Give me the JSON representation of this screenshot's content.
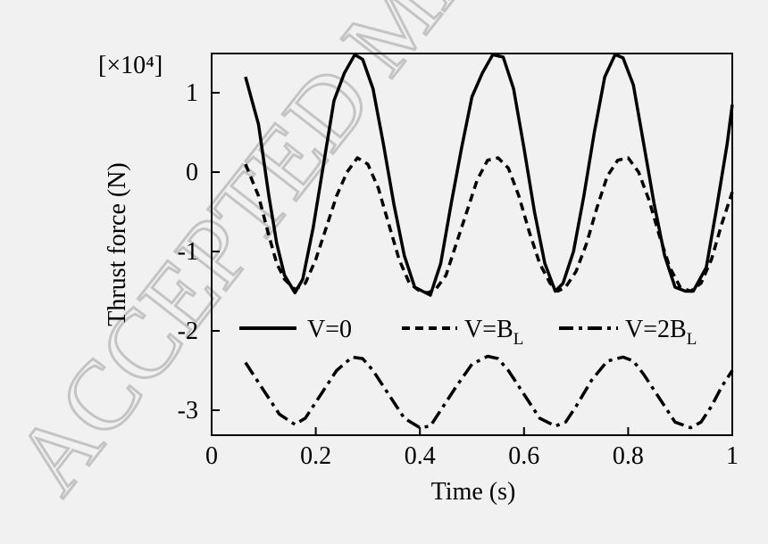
{
  "watermark": "ACCEPTED MANUSCRIPT",
  "chart_data": {
    "type": "line",
    "xlabel": "Time (s)",
    "ylabel": "Thrust force (N)",
    "yscale_label": "[×10⁴]",
    "xlim": [
      0,
      1
    ],
    "ylim": [
      -3.3,
      1.5
    ],
    "xticks": [
      0,
      0.2,
      0.4,
      0.6,
      0.8,
      1
    ],
    "xtick_labels": [
      "0",
      "0.2",
      "0.4",
      "0.6",
      "0.8",
      "1"
    ],
    "yticks": [
      1,
      0,
      -1,
      -2,
      -3
    ],
    "ytick_labels": [
      "1",
      "0",
      "-1",
      "-2",
      "-3"
    ],
    "legend_position": "middle",
    "grid": false,
    "series": [
      {
        "name": "V=0",
        "style": "solid",
        "x": [
          0.065,
          0.09,
          0.11,
          0.125,
          0.14,
          0.16,
          0.175,
          0.195,
          0.215,
          0.235,
          0.255,
          0.275,
          0.29,
          0.31,
          0.33,
          0.35,
          0.37,
          0.39,
          0.405,
          0.42,
          0.44,
          0.46,
          0.48,
          0.5,
          0.52,
          0.54,
          0.56,
          0.58,
          0.6,
          0.62,
          0.64,
          0.66,
          0.675,
          0.695,
          0.715,
          0.735,
          0.755,
          0.775,
          0.79,
          0.81,
          0.83,
          0.85,
          0.87,
          0.89,
          0.91,
          0.925,
          0.95,
          0.97,
          0.99,
          1.0
        ],
        "y": [
          1.2,
          0.6,
          -0.3,
          -0.9,
          -1.3,
          -1.52,
          -1.35,
          -0.7,
          0.1,
          0.9,
          1.25,
          1.48,
          1.42,
          1.05,
          0.35,
          -0.4,
          -1.05,
          -1.45,
          -1.5,
          -1.55,
          -1.15,
          -0.4,
          0.3,
          0.95,
          1.25,
          1.48,
          1.45,
          1.05,
          0.3,
          -0.5,
          -1.15,
          -1.5,
          -1.4,
          -1.0,
          -0.3,
          0.5,
          1.2,
          1.48,
          1.44,
          1.1,
          0.35,
          -0.4,
          -1.05,
          -1.45,
          -1.5,
          -1.5,
          -1.2,
          -0.45,
          0.35,
          0.85
        ]
      },
      {
        "name": "V=B",
        "name_subscript": "L",
        "style": "dashed",
        "x": [
          0.065,
          0.09,
          0.11,
          0.125,
          0.14,
          0.16,
          0.18,
          0.2,
          0.22,
          0.24,
          0.26,
          0.28,
          0.3,
          0.32,
          0.34,
          0.36,
          0.38,
          0.4,
          0.415,
          0.43,
          0.45,
          0.47,
          0.49,
          0.51,
          0.53,
          0.55,
          0.57,
          0.59,
          0.61,
          0.63,
          0.65,
          0.665,
          0.68,
          0.7,
          0.72,
          0.74,
          0.76,
          0.78,
          0.8,
          0.82,
          0.84,
          0.86,
          0.88,
          0.9,
          0.92,
          0.94,
          0.96,
          0.98,
          1.0
        ],
        "y": [
          0.1,
          -0.3,
          -0.8,
          -1.15,
          -1.35,
          -1.48,
          -1.4,
          -1.1,
          -0.7,
          -0.3,
          0.0,
          0.18,
          0.1,
          -0.2,
          -0.65,
          -1.1,
          -1.4,
          -1.5,
          -1.52,
          -1.48,
          -1.3,
          -0.9,
          -0.5,
          -0.1,
          0.15,
          0.18,
          0.05,
          -0.3,
          -0.75,
          -1.15,
          -1.4,
          -1.5,
          -1.45,
          -1.25,
          -0.9,
          -0.45,
          -0.05,
          0.15,
          0.18,
          0.0,
          -0.35,
          -0.8,
          -1.2,
          -1.45,
          -1.5,
          -1.4,
          -1.1,
          -0.65,
          -0.25
        ]
      },
      {
        "name": "V=2B",
        "name_subscript": "L",
        "style": "dashdot",
        "x": [
          0.065,
          0.1,
          0.13,
          0.16,
          0.18,
          0.21,
          0.24,
          0.27,
          0.29,
          0.31,
          0.34,
          0.37,
          0.4,
          0.42,
          0.44,
          0.47,
          0.5,
          0.53,
          0.55,
          0.57,
          0.6,
          0.63,
          0.66,
          0.68,
          0.7,
          0.73,
          0.76,
          0.79,
          0.81,
          0.83,
          0.86,
          0.89,
          0.92,
          0.94,
          0.96,
          0.98,
          1.0
        ],
        "y": [
          -2.4,
          -2.75,
          -3.05,
          -3.18,
          -3.1,
          -2.8,
          -2.5,
          -2.33,
          -2.35,
          -2.5,
          -2.8,
          -3.1,
          -3.22,
          -3.2,
          -3.0,
          -2.7,
          -2.42,
          -2.32,
          -2.35,
          -2.5,
          -2.8,
          -3.1,
          -3.2,
          -3.15,
          -2.95,
          -2.62,
          -2.38,
          -2.33,
          -2.38,
          -2.55,
          -2.85,
          -3.15,
          -3.22,
          -3.15,
          -2.95,
          -2.7,
          -2.5
        ]
      }
    ]
  }
}
